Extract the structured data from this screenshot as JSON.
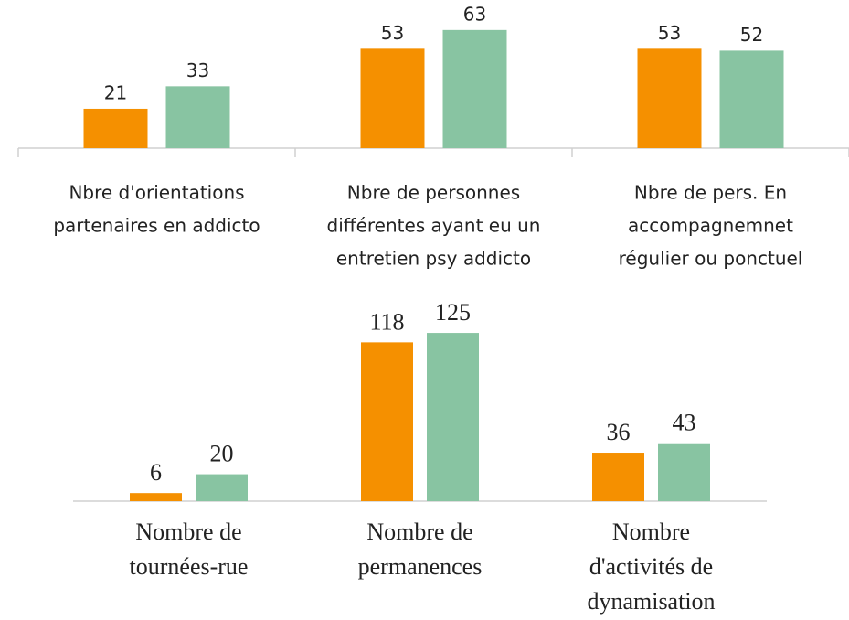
{
  "chart_data": [
    {
      "type": "bar",
      "categories": [
        [
          "Nbre d'orientations",
          "partenaires en  addicto"
        ],
        [
          "Nbre de personnes",
          "différentes ayant eu un",
          "entretien psy addicto"
        ],
        [
          "Nbre de pers. En",
          "accompagnemnet",
          "régulier ou ponctuel"
        ]
      ],
      "series": [
        {
          "color": "#f59000",
          "values": [
            21,
            53,
            53
          ]
        },
        {
          "color": "#88c4a2",
          "values": [
            33,
            63,
            52
          ]
        }
      ],
      "ylim": [
        0,
        70
      ]
    },
    {
      "type": "bar",
      "categories": [
        [
          "Nombre de",
          "tournées-rue"
        ],
        [
          "Nombre de",
          "permanences"
        ],
        [
          "Nombre",
          "d'activités de",
          "dynamisation"
        ]
      ],
      "series": [
        {
          "color": "#f59000",
          "values": [
            6,
            118,
            36
          ]
        },
        {
          "color": "#88c4a2",
          "values": [
            20,
            125,
            43
          ]
        }
      ],
      "ylim": [
        0,
        140
      ]
    }
  ]
}
